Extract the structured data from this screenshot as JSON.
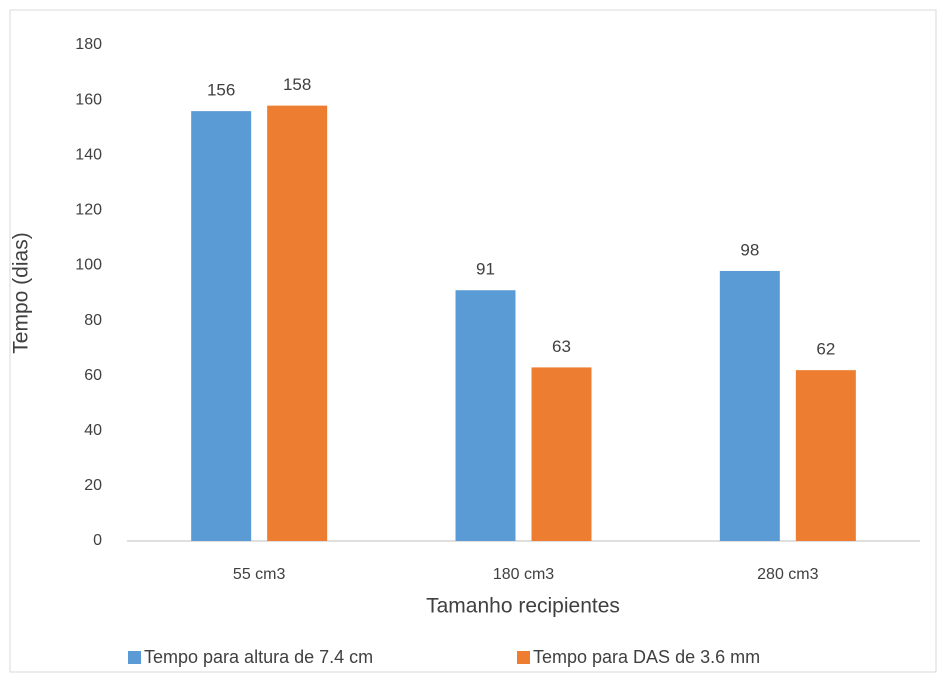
{
  "chart_data": {
    "type": "bar",
    "categories": [
      "55 cm3",
      "180 cm3",
      "280 cm3"
    ],
    "series": [
      {
        "name": "Tempo para altura de 7.4 cm",
        "color": "#5b9bd5",
        "values": [
          156,
          91,
          98
        ]
      },
      {
        "name": "Tempo para DAS de 3.6 mm",
        "color": "#ed7d31",
        "values": [
          158,
          63,
          62
        ]
      }
    ],
    "x_label": "Tamanho recipientes",
    "y_label": "Tempo (dias)",
    "ylim": [
      0,
      180
    ],
    "yticks": [
      0,
      20,
      40,
      60,
      80,
      100,
      120,
      140,
      160,
      180
    ],
    "grid": false,
    "legend": "bottom"
  }
}
